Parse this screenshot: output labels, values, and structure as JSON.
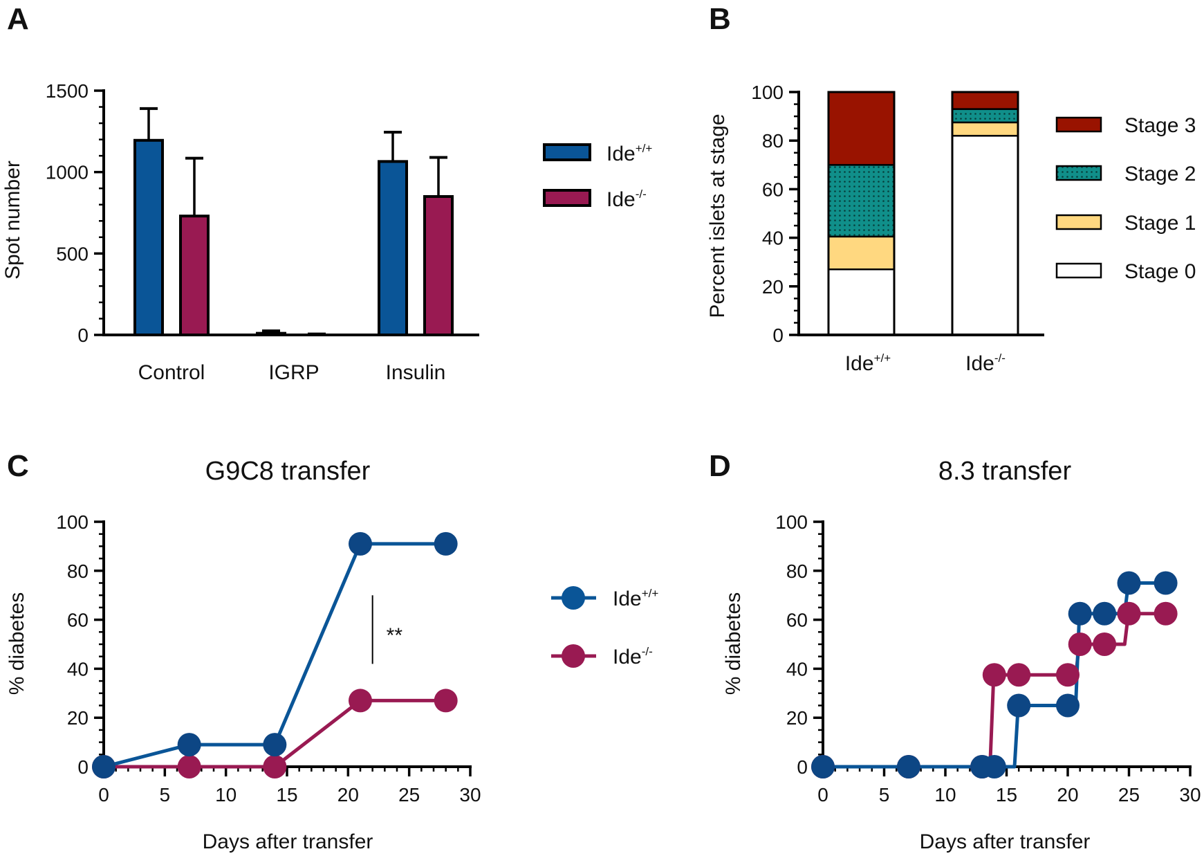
{
  "colors": {
    "wt": "#0a5597",
    "ko": "#991a52",
    "wt_marker": "#0d4684",
    "stage3": "#991300",
    "stage2": "#108f8a",
    "stage1": "#ffd880",
    "stage0": "#ffffff",
    "axis": "#000000"
  },
  "legend_labels": {
    "wt_base": "Ide",
    "wt_sup": "+/+",
    "ko_base": "Ide",
    "ko_sup": "-/-"
  },
  "chart_data": [
    {
      "panel": "A",
      "type": "bar",
      "title": "",
      "xlabel": "",
      "ylabel": "Spot number",
      "ylim": [
        0,
        1500
      ],
      "yticks": [
        "0",
        "500",
        "1000",
        "1500"
      ],
      "yticks_values": [
        0,
        500,
        1000,
        1500
      ],
      "categories": [
        "Control",
        "IGRP",
        "Insulin"
      ],
      "series": [
        {
          "name": "Ide+/+",
          "values": [
            1195,
            10,
            1065
          ],
          "errors": [
            195,
            15,
            180
          ]
        },
        {
          "name": "Ide-/-",
          "values": [
            730,
            3,
            850
          ],
          "errors": [
            355,
            3,
            240
          ]
        }
      ],
      "legend": "right"
    },
    {
      "panel": "B",
      "type": "bar",
      "stacked": true,
      "title": "",
      "xlabel": "",
      "ylabel": "Percent islets at stage",
      "ylim": [
        0,
        100
      ],
      "yticks": [
        "0",
        "20",
        "40",
        "60",
        "80",
        "100"
      ],
      "yticks_values": [
        0,
        20,
        40,
        60,
        80,
        100
      ],
      "categories": [
        "Ide+/+",
        "Ide-/-"
      ],
      "series": [
        {
          "name": "Stage 0",
          "values": [
            27,
            82
          ]
        },
        {
          "name": "Stage 1",
          "values": [
            13.5,
            5.5
          ]
        },
        {
          "name": "Stage 2",
          "values": [
            29.5,
            5.5
          ]
        },
        {
          "name": "Stage 3",
          "values": [
            30,
            7
          ]
        }
      ],
      "legend_order": [
        "Stage 3",
        "Stage 2",
        "Stage 1",
        "Stage 0"
      ],
      "legend": "right"
    },
    {
      "panel": "C",
      "type": "line",
      "title": "G9C8 transfer",
      "xlabel": "Days after transfer",
      "ylabel": "% diabetes",
      "xlim": [
        0,
        30
      ],
      "ylim": [
        0,
        100
      ],
      "xticks": [
        "0",
        "5",
        "10",
        "15",
        "20",
        "25",
        "30"
      ],
      "xticks_values": [
        0,
        5,
        10,
        15,
        20,
        25,
        30
      ],
      "yticks": [
        "0",
        "20",
        "40",
        "60",
        "80",
        "100"
      ],
      "yticks_values": [
        0,
        20,
        40,
        60,
        80,
        100
      ],
      "series": [
        {
          "name": "Ide+/+",
          "x": [
            0,
            7,
            14,
            21,
            28
          ],
          "y": [
            0,
            9,
            9,
            91,
            91
          ]
        },
        {
          "name": "Ide-/-",
          "x": [
            0,
            7,
            14,
            21,
            28
          ],
          "y": [
            0,
            0,
            0,
            27,
            27
          ]
        }
      ],
      "annotation": {
        "text": "**",
        "x": 22,
        "y1": 42,
        "y2": 70
      },
      "legend": "right"
    },
    {
      "panel": "D",
      "type": "line",
      "step": true,
      "title": "8.3 transfer",
      "xlabel": "Days after transfer",
      "ylabel": "% diabetes",
      "xlim": [
        0,
        30
      ],
      "ylim": [
        0,
        100
      ],
      "xticks": [
        "0",
        "5",
        "10",
        "15",
        "20",
        "25",
        "30"
      ],
      "xticks_values": [
        0,
        5,
        10,
        15,
        20,
        25,
        30
      ],
      "yticks": [
        "0",
        "20",
        "40",
        "60",
        "80",
        "100"
      ],
      "yticks_values": [
        0,
        20,
        40,
        60,
        80,
        100
      ],
      "series": [
        {
          "name": "Ide+/+",
          "x": [
            0,
            7,
            13,
            14,
            16,
            20,
            21,
            23,
            25,
            28
          ],
          "y": [
            0,
            0,
            0,
            0,
            25,
            25,
            62.5,
            62.5,
            75,
            75
          ]
        },
        {
          "name": "Ide-/-",
          "x": [
            0,
            7,
            13,
            14,
            16,
            20,
            21,
            23,
            25,
            28
          ],
          "y": [
            0,
            0,
            0,
            37.5,
            37.5,
            37.5,
            50,
            50,
            62.5,
            62.5
          ]
        }
      ]
    }
  ]
}
